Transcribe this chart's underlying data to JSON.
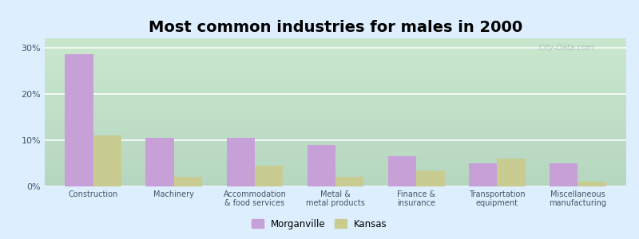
{
  "title": "Most common industries for males in 2000",
  "categories": [
    "Construction",
    "Machinery",
    "Accommodation\n& food services",
    "Metal &\nmetal products",
    "Finance &\ninsurance",
    "Transportation\nequipment",
    "Miscellaneous\nmanufacturing"
  ],
  "morganville": [
    28.5,
    10.5,
    10.5,
    9.0,
    6.5,
    5.0,
    5.0
  ],
  "kansas": [
    11.0,
    2.0,
    4.5,
    2.0,
    3.5,
    6.0,
    1.0
  ],
  "morganville_color": "#c8a0d8",
  "kansas_color": "#c8cc90",
  "background_figure": "#e8f0ff",
  "ylim": [
    0,
    32
  ],
  "yticks": [
    0,
    10,
    20,
    30
  ],
  "ytick_labels": [
    "0%",
    "10%",
    "20%",
    "30%"
  ],
  "legend_morganville": "Morganville",
  "legend_kansas": "Kansas",
  "bar_width": 0.35,
  "title_fontsize": 14
}
